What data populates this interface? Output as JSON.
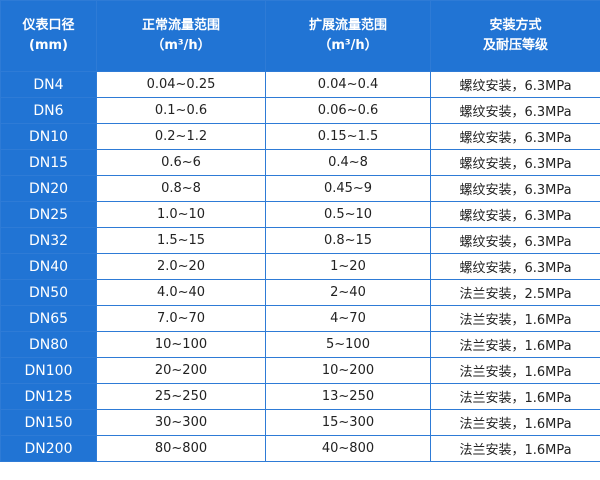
{
  "table": {
    "header": [
      [
        "仪表口径",
        "(mm)"
      ],
      [
        "正常流量范围",
        "（m³/h）"
      ],
      [
        "扩展流量范围",
        "（m³/h）"
      ],
      [
        "安装方式",
        "及耐压等级"
      ]
    ],
    "rows": [
      [
        "DN4",
        "0.04~0.25",
        "0.04~0.4",
        "螺纹安装，6.3MPa"
      ],
      [
        "DN6",
        "0.1~0.6",
        "0.06~0.6",
        "螺纹安装，6.3MPa"
      ],
      [
        "DN10",
        "0.2~1.2",
        "0.15~1.5",
        "螺纹安装，6.3MPa"
      ],
      [
        "DN15",
        "0.6~6",
        "0.4~8",
        "螺纹安装，6.3MPa"
      ],
      [
        "DN20",
        "0.8~8",
        "0.45~9",
        "螺纹安装，6.3MPa"
      ],
      [
        "DN25",
        "1.0~10",
        "0.5~10",
        "螺纹安装，6.3MPa"
      ],
      [
        "DN32",
        "1.5~15",
        "0.8~15",
        "螺纹安装，6.3MPa"
      ],
      [
        "DN40",
        "2.0~20",
        "1~20",
        "螺纹安装，6.3MPa"
      ],
      [
        "DN50",
        "4.0~40",
        "2~40",
        "法兰安装，2.5MPa"
      ],
      [
        "DN65",
        "7.0~70",
        "4~70",
        "法兰安装，1.6MPa"
      ],
      [
        "DN80",
        "10~100",
        "5~100",
        "法兰安装，1.6MPa"
      ],
      [
        "DN100",
        "20~200",
        "10~200",
        "法兰安装，1.6MPa"
      ],
      [
        "DN125",
        "25~250",
        "13~250",
        "法兰安装，1.6MPa"
      ],
      [
        "DN150",
        "30~300",
        "15~300",
        "法兰安装，1.6MPa"
      ],
      [
        "DN200",
        "80~800",
        "40~800",
        "法兰安装，1.6MPa"
      ]
    ]
  }
}
